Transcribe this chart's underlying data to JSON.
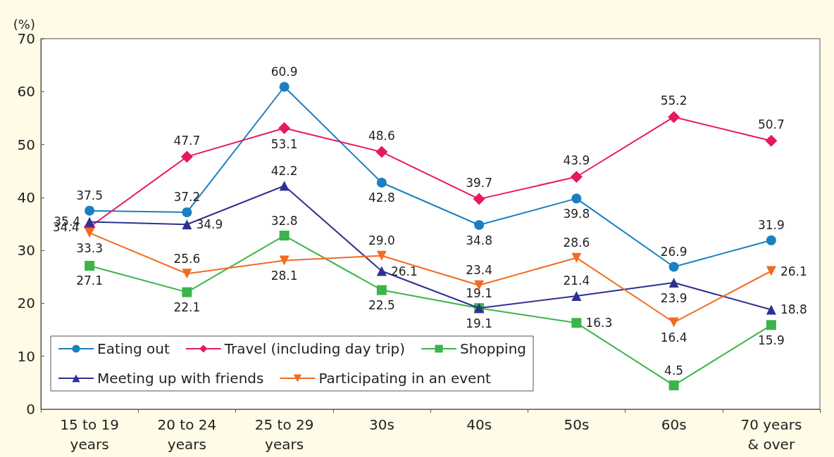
{
  "chart_data": {
    "type": "line",
    "ylabel": "(%)",
    "categories": [
      "15 to 19\nyears",
      "20 to 24\nyears",
      "25 to 29\nyears",
      "30s",
      "40s",
      "50s",
      "60s",
      "70 years\n& over"
    ],
    "series": [
      {
        "name": "Eating out",
        "color": "#1a7fc1",
        "marker": "circle",
        "values": [
          37.5,
          37.2,
          60.9,
          42.8,
          34.8,
          39.8,
          26.9,
          31.9
        ],
        "value_labels": [
          "37.5",
          "37.2",
          "60.9",
          "42.8",
          "34.8",
          "39.8",
          "26.9",
          "31.9"
        ]
      },
      {
        "name": "Travel (including day trip)",
        "color": "#e5195f",
        "marker": "diamond",
        "values": [
          34.4,
          47.7,
          53.1,
          48.6,
          39.7,
          43.9,
          55.2,
          50.7
        ],
        "value_labels": [
          "34.4",
          "47.7",
          "53.1",
          "48.6",
          "39.7",
          "43.9",
          "55.2",
          "50.7"
        ]
      },
      {
        "name": "Shopping",
        "color": "#3cb44a",
        "marker": "square",
        "values": [
          27.1,
          22.1,
          32.8,
          22.5,
          19.1,
          16.3,
          4.5,
          15.9
        ],
        "value_labels": [
          "27.1",
          "22.1",
          "32.8",
          "22.5",
          "19.1",
          "16.3",
          "4.5",
          "15.9"
        ]
      },
      {
        "name": "Meeting up with friends",
        "color": "#2e3192",
        "marker": "triangle",
        "values": [
          35.4,
          34.9,
          42.2,
          26.1,
          19.1,
          21.4,
          23.9,
          18.8
        ],
        "value_labels": [
          "35.4",
          "34.9",
          "42.2",
          "26.1",
          "19.1",
          "21.4",
          "23.9",
          "18.8"
        ]
      },
      {
        "name": "Participating in an event",
        "color": "#f26b21",
        "marker": "triangle-down",
        "values": [
          33.3,
          25.6,
          28.1,
          29.0,
          23.4,
          28.6,
          16.4,
          26.1
        ],
        "value_labels": [
          "33.3",
          "25.6",
          "28.1",
          "29.0",
          "23.4",
          "28.6",
          "16.4",
          "26.1"
        ]
      }
    ],
    "ylim": [
      0,
      70
    ],
    "yticks": [
      0,
      10,
      20,
      30,
      40,
      50,
      60,
      70
    ],
    "grid": false,
    "legend": "bottom left",
    "line_style": "solid"
  }
}
